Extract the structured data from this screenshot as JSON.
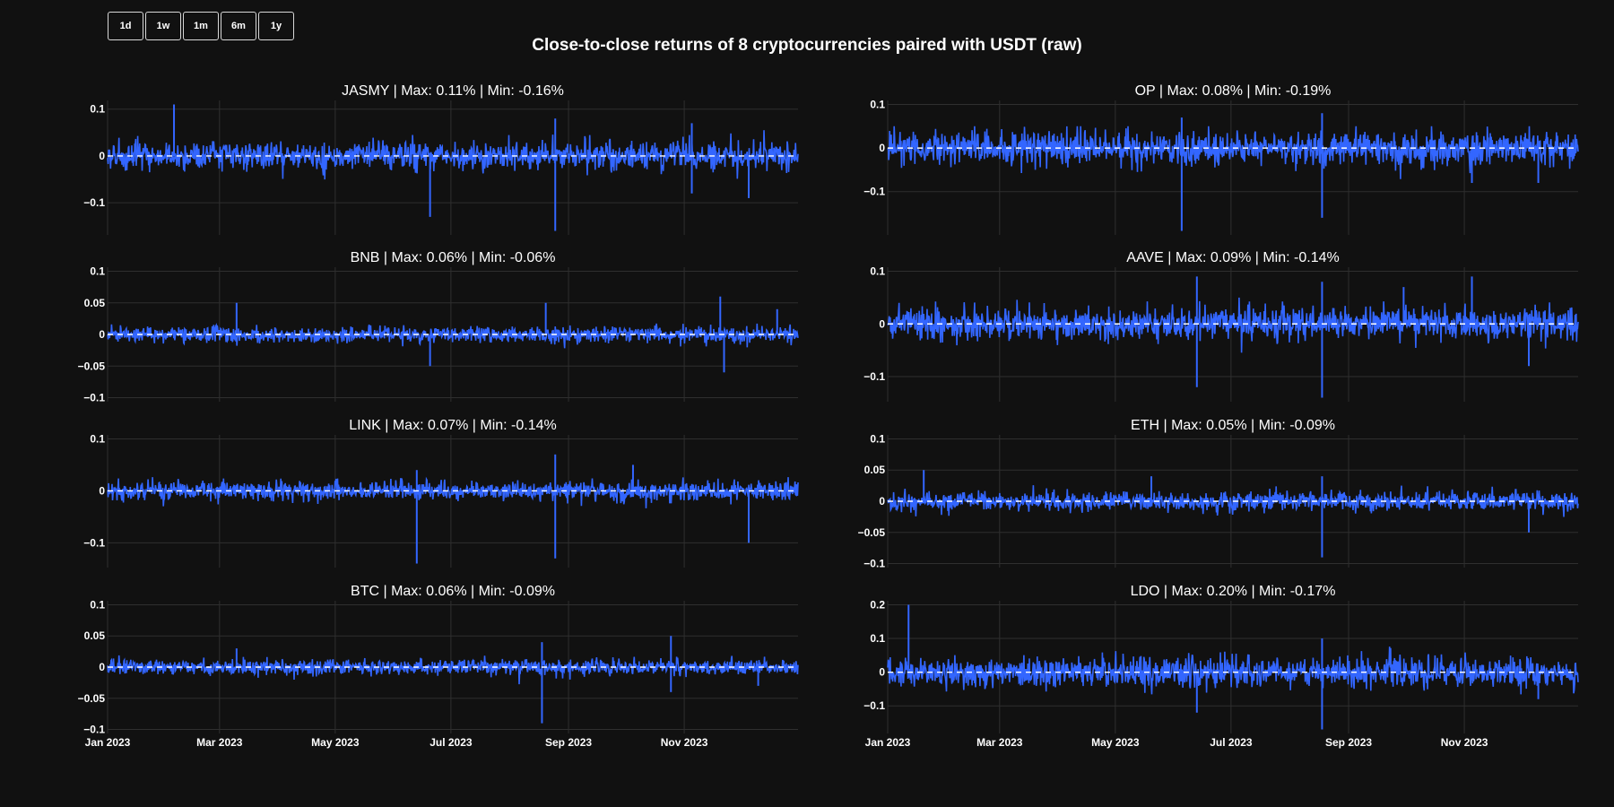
{
  "range_buttons": [
    "1d",
    "1w",
    "1m",
    "6m",
    "1y"
  ],
  "title": "Close-to-close returns of 8 cryptocurrencies paired with USDT (raw)",
  "colors": {
    "background": "#111111",
    "series": "#3366ff",
    "grid": "#2f2f2f",
    "zero_line": "#ffffff",
    "text": "#ffffff"
  },
  "chart_data": {
    "type": "line",
    "x_range": [
      "2023-01-01",
      "2023-12-31"
    ],
    "x_ticks": [
      {
        "date": "2023-01-01",
        "label": "Jan 2023"
      },
      {
        "date": "2023-03-01",
        "label": "Mar 2023"
      },
      {
        "date": "2023-05-01",
        "label": "May 2023"
      },
      {
        "date": "2023-07-01",
        "label": "Jul 2023"
      },
      {
        "date": "2023-09-01",
        "label": "Sep 2023"
      },
      {
        "date": "2023-11-01",
        "label": "Nov 2023"
      }
    ],
    "grid": true,
    "zero_line_style": "dashed",
    "panels": [
      {
        "symbol": "JASMY",
        "title": "JASMY | Max: 0.11% | Min: -0.16%",
        "max": 0.11,
        "min": -0.16,
        "typical_amplitude": 0.02,
        "ylim": [
          -0.16,
          0.11
        ],
        "yticks": [
          {
            "v": 0.1,
            "label": "0.1"
          },
          {
            "v": 0,
            "label": "0"
          },
          {
            "v": -0.1,
            "label": "−0.1"
          }
        ],
        "spikes": [
          {
            "date": "2023-02-05",
            "value": 0.11
          },
          {
            "date": "2023-06-20",
            "value": -0.13
          },
          {
            "date": "2023-08-25",
            "value": 0.08
          },
          {
            "date": "2023-08-25",
            "value": -0.16
          },
          {
            "date": "2023-11-05",
            "value": 0.07
          },
          {
            "date": "2023-11-05",
            "value": -0.08
          },
          {
            "date": "2023-12-05",
            "value": -0.09
          }
        ]
      },
      {
        "symbol": "OP",
        "title": "OP | Max: 0.08% | Min: -0.19%",
        "max": 0.08,
        "min": -0.19,
        "typical_amplitude": 0.025,
        "ylim": [
          -0.19,
          0.1
        ],
        "yticks": [
          {
            "v": 0.1,
            "label": "0.1"
          },
          {
            "v": 0,
            "label": "0"
          },
          {
            "v": -0.1,
            "label": "−0.1"
          }
        ],
        "spikes": [
          {
            "date": "2023-06-05",
            "value": 0.07
          },
          {
            "date": "2023-06-05",
            "value": -0.19
          },
          {
            "date": "2023-08-18",
            "value": 0.08
          },
          {
            "date": "2023-08-18",
            "value": -0.16
          },
          {
            "date": "2023-11-05",
            "value": -0.08
          },
          {
            "date": "2023-12-10",
            "value": -0.08
          }
        ]
      },
      {
        "symbol": "BNB",
        "title": "BNB | Max: 0.06% | Min: -0.06%",
        "max": 0.06,
        "min": -0.06,
        "typical_amplitude": 0.008,
        "ylim": [
          -0.1,
          0.1
        ],
        "yticks": [
          {
            "v": 0.1,
            "label": "0.1"
          },
          {
            "v": 0.05,
            "label": "0.05"
          },
          {
            "v": 0,
            "label": "0"
          },
          {
            "v": -0.05,
            "label": "−0.05"
          },
          {
            "v": -0.1,
            "label": "−0.1"
          }
        ],
        "spikes": [
          {
            "date": "2023-03-10",
            "value": 0.05
          },
          {
            "date": "2023-06-20",
            "value": -0.05
          },
          {
            "date": "2023-08-20",
            "value": 0.05
          },
          {
            "date": "2023-11-20",
            "value": 0.06
          },
          {
            "date": "2023-11-22",
            "value": -0.06
          },
          {
            "date": "2023-12-20",
            "value": 0.04
          }
        ]
      },
      {
        "symbol": "AAVE",
        "title": "AAVE | Max: 0.09% | Min: -0.14%",
        "max": 0.09,
        "min": -0.14,
        "typical_amplitude": 0.02,
        "ylim": [
          -0.14,
          0.1
        ],
        "yticks": [
          {
            "v": 0.1,
            "label": "0.1"
          },
          {
            "v": 0,
            "label": "0"
          },
          {
            "v": -0.1,
            "label": "−0.1"
          }
        ],
        "spikes": [
          {
            "date": "2023-06-13",
            "value": 0.09
          },
          {
            "date": "2023-06-13",
            "value": -0.12
          },
          {
            "date": "2023-08-18",
            "value": 0.08
          },
          {
            "date": "2023-08-18",
            "value": -0.14
          },
          {
            "date": "2023-09-30",
            "value": 0.07
          },
          {
            "date": "2023-11-05",
            "value": 0.09
          },
          {
            "date": "2023-12-05",
            "value": -0.08
          }
        ]
      },
      {
        "symbol": "LINK",
        "title": "LINK | Max: 0.07% | Min: -0.14%",
        "max": 0.07,
        "min": -0.14,
        "typical_amplitude": 0.012,
        "ylim": [
          -0.14,
          0.1
        ],
        "yticks": [
          {
            "v": 0.1,
            "label": "0.1"
          },
          {
            "v": 0,
            "label": "0"
          },
          {
            "v": -0.1,
            "label": "−0.1"
          }
        ],
        "spikes": [
          {
            "date": "2023-06-13",
            "value": 0.04
          },
          {
            "date": "2023-06-13",
            "value": -0.14
          },
          {
            "date": "2023-08-25",
            "value": 0.07
          },
          {
            "date": "2023-08-25",
            "value": -0.13
          },
          {
            "date": "2023-10-05",
            "value": 0.05
          },
          {
            "date": "2023-12-05",
            "value": -0.1
          }
        ]
      },
      {
        "symbol": "ETH",
        "title": "ETH | Max: 0.05% | Min: -0.09%",
        "max": 0.05,
        "min": -0.09,
        "typical_amplitude": 0.01,
        "ylim": [
          -0.1,
          0.1
        ],
        "yticks": [
          {
            "v": 0.1,
            "label": "0.1"
          },
          {
            "v": 0.05,
            "label": "0.05"
          },
          {
            "v": 0,
            "label": "0"
          },
          {
            "v": -0.05,
            "label": "−0.05"
          },
          {
            "v": -0.1,
            "label": "−0.1"
          }
        ],
        "spikes": [
          {
            "date": "2023-01-20",
            "value": 0.05
          },
          {
            "date": "2023-05-20",
            "value": 0.04
          },
          {
            "date": "2023-08-18",
            "value": 0.04
          },
          {
            "date": "2023-08-18",
            "value": -0.09
          },
          {
            "date": "2023-12-05",
            "value": -0.05
          }
        ]
      },
      {
        "symbol": "BTC",
        "title": "BTC | Max: 0.06% | Min: -0.09%",
        "max": 0.06,
        "min": -0.09,
        "typical_amplitude": 0.008,
        "ylim": [
          -0.1,
          0.1
        ],
        "yticks": [
          {
            "v": 0.1,
            "label": "0.1"
          },
          {
            "v": 0.05,
            "label": "0.05"
          },
          {
            "v": 0,
            "label": "0"
          },
          {
            "v": -0.05,
            "label": "−0.05"
          },
          {
            "v": -0.1,
            "label": "−0.1"
          }
        ],
        "spikes": [
          {
            "date": "2023-03-10",
            "value": 0.03
          },
          {
            "date": "2023-08-18",
            "value": 0.04
          },
          {
            "date": "2023-08-18",
            "value": -0.09
          },
          {
            "date": "2023-10-25",
            "value": 0.05
          },
          {
            "date": "2023-10-25",
            "value": -0.04
          },
          {
            "date": "2023-12-10",
            "value": -0.03
          }
        ]
      },
      {
        "symbol": "LDO",
        "title": "LDO | Max: 0.20% | Min: -0.17%",
        "max": 0.2,
        "min": -0.17,
        "typical_amplitude": 0.03,
        "ylim": [
          -0.17,
          0.2
        ],
        "yticks": [
          {
            "v": 0.2,
            "label": "0.2"
          },
          {
            "v": 0.1,
            "label": "0.1"
          },
          {
            "v": 0,
            "label": "0"
          },
          {
            "v": -0.1,
            "label": "−0.1"
          }
        ],
        "spikes": [
          {
            "date": "2023-01-12",
            "value": 0.2
          },
          {
            "date": "2023-06-13",
            "value": -0.12
          },
          {
            "date": "2023-08-18",
            "value": 0.1
          },
          {
            "date": "2023-08-18",
            "value": -0.17
          },
          {
            "date": "2023-12-10",
            "value": -0.08
          }
        ]
      }
    ]
  }
}
